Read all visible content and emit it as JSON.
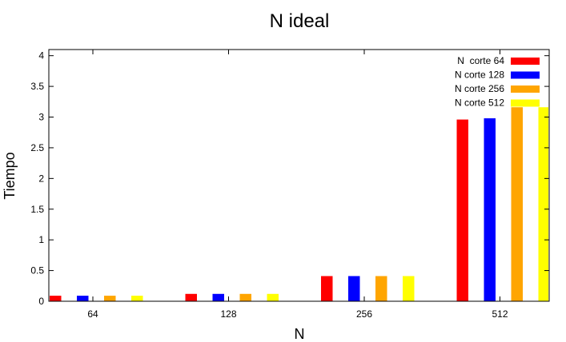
{
  "chart_data": {
    "type": "bar",
    "title": "N ideal",
    "xlabel": "N",
    "ylabel": "Tiempo",
    "categories": [
      "64",
      "128",
      "256",
      "512"
    ],
    "ylim": [
      0,
      4.1
    ],
    "yticks": [
      "0",
      "0.5",
      "1",
      "1.5",
      "2",
      "2.5",
      "3",
      "3.5",
      "4"
    ],
    "grid": false,
    "legend_position": "top-right",
    "series": [
      {
        "name": "N  corte 64",
        "color": "#ff0000",
        "values": [
          0.09,
          0.12,
          0.41,
          2.96
        ]
      },
      {
        "name": "N corte 128",
        "color": "#0000ff",
        "values": [
          0.09,
          0.12,
          0.41,
          2.98
        ]
      },
      {
        "name": "N corte 256",
        "color": "#ffa500",
        "values": [
          0.09,
          0.12,
          0.41,
          3.16
        ]
      },
      {
        "name": "N corte 512",
        "color": "#ffff00",
        "values": [
          0.09,
          0.12,
          0.41,
          3.16
        ]
      }
    ]
  }
}
